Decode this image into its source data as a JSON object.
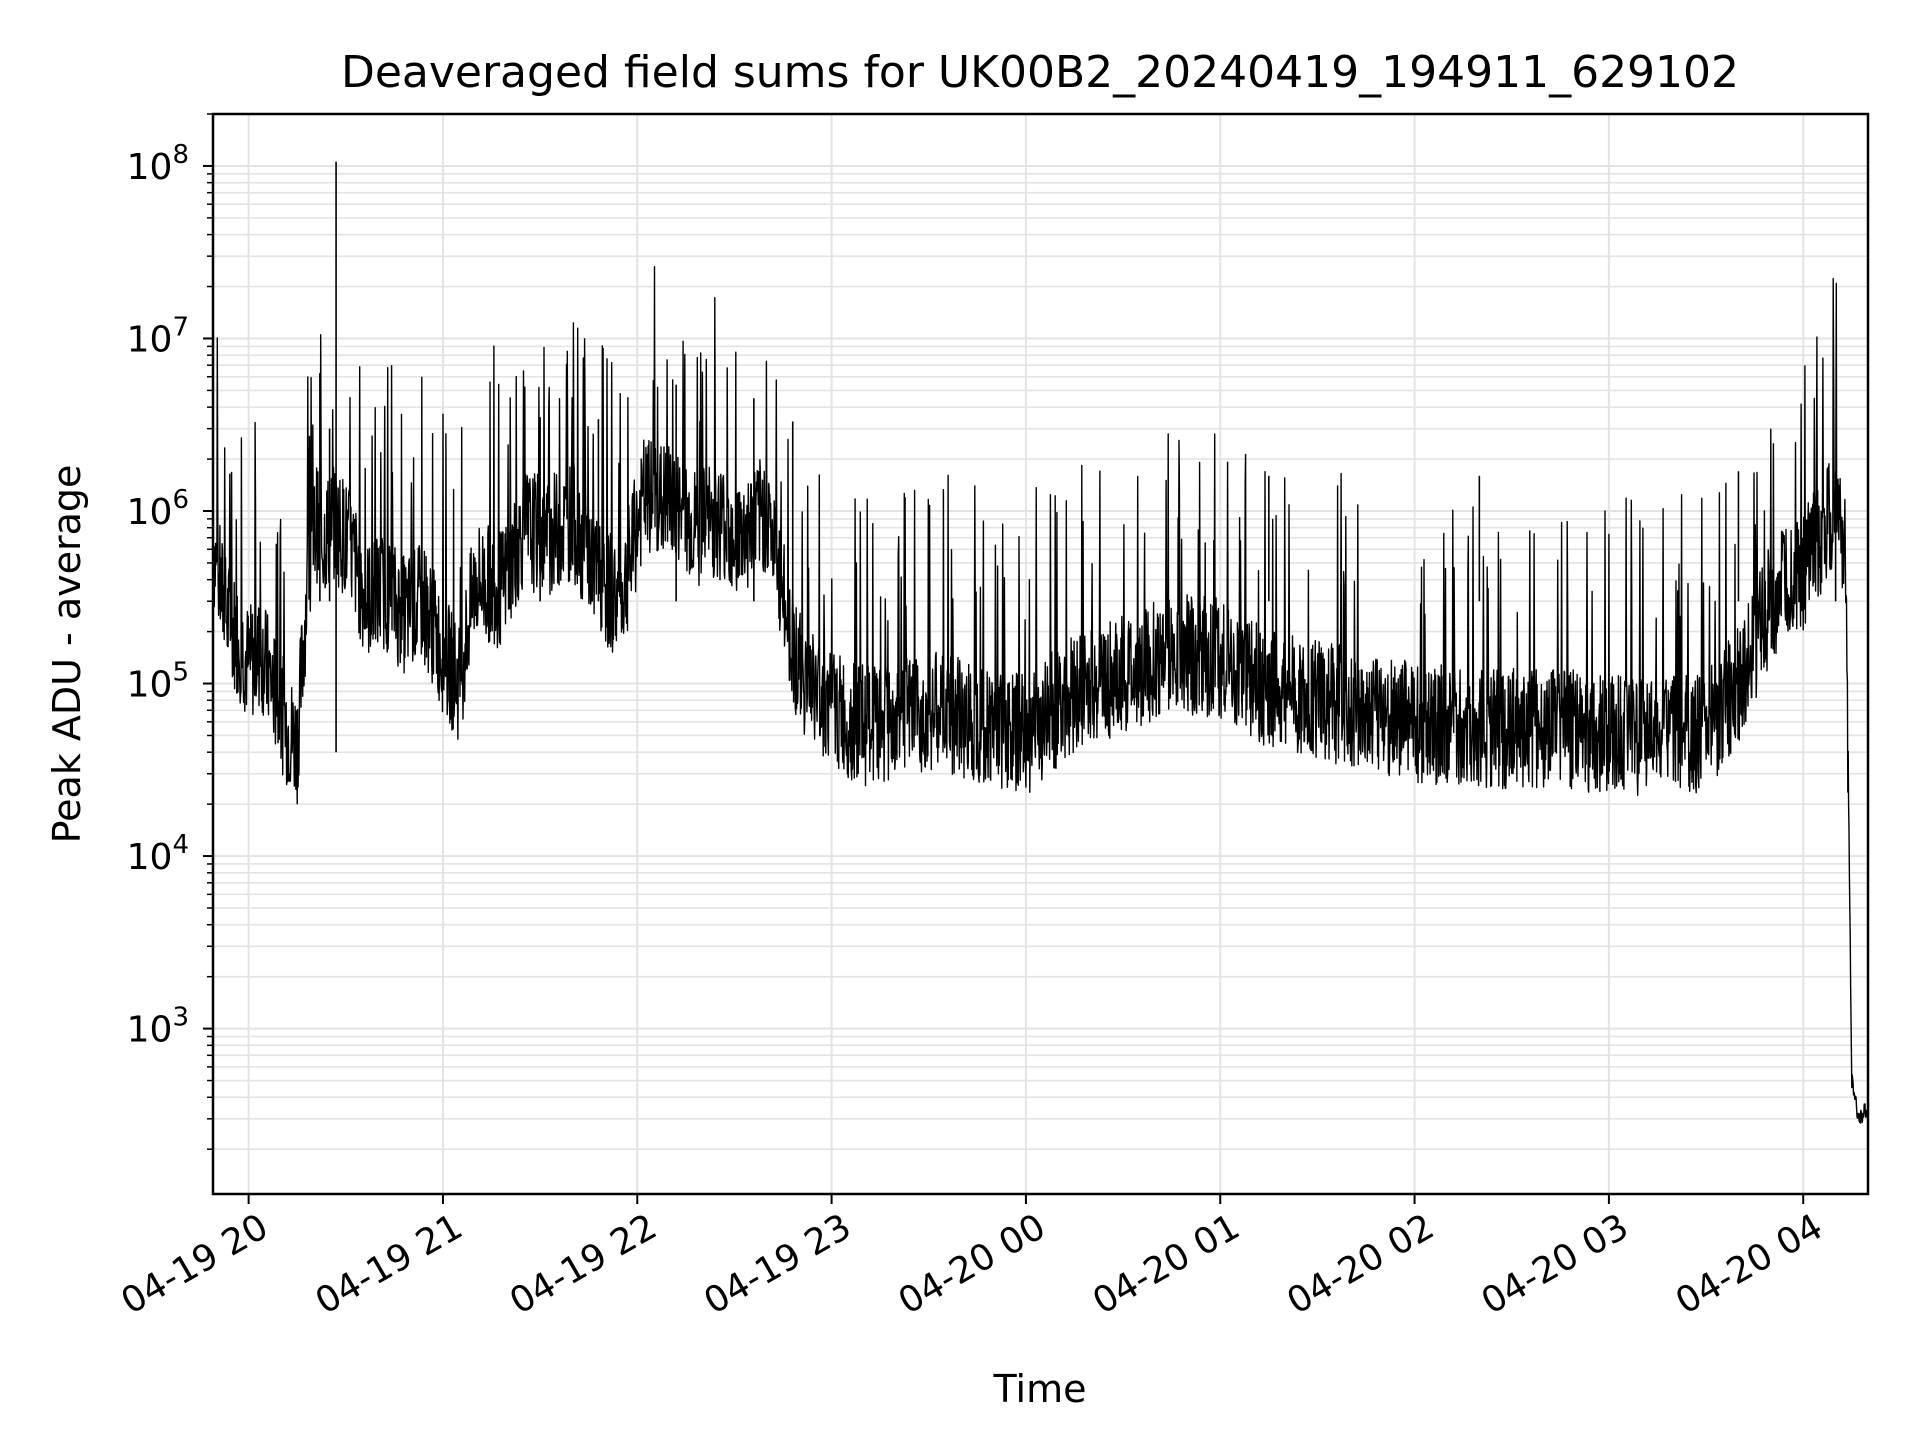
{
  "chart_data": {
    "type": "line",
    "title": "Deaveraged field sums for UK00B2_20240419_194911_629102",
    "xlabel": "Time",
    "ylabel": "Peak ADU - average",
    "yscale": "log",
    "grid": true,
    "xlim": [
      "2024-04-19 19:49",
      "2024-04-20 04:20"
    ],
    "ylim": [
      110,
      200000000
    ],
    "x_ticks": [
      "04-19 20",
      "04-19 21",
      "04-19 22",
      "04-19 23",
      "04-20 00",
      "04-20 01",
      "04-20 02",
      "04-20 03",
      "04-20 04"
    ],
    "y_ticks": [
      {
        "base": "10",
        "exp": "3",
        "value": 1000
      },
      {
        "base": "10",
        "exp": "4",
        "value": 10000
      },
      {
        "base": "10",
        "exp": "5",
        "value": 100000
      },
      {
        "base": "10",
        "exp": "6",
        "value": 1000000
      },
      {
        "base": "10",
        "exp": "7",
        "value": 10000000
      },
      {
        "base": "10",
        "exp": "8",
        "value": 100000000
      }
    ],
    "line_color": "#000000",
    "series": [
      {
        "x": [
          "2024-04-19 19:49",
          "2024-04-19 19:53",
          "2024-04-19 19:57",
          "2024-04-19 20:00",
          "2024-04-19 20:04",
          "2024-04-19 20:08",
          "2024-04-19 20:12",
          "2024-04-19 20:15",
          "2024-04-19 20:18",
          "2024-04-19 20:21",
          "2024-04-19 20:22",
          "2024-04-19 20:24",
          "2024-04-19 20:27",
          "2024-04-19 20:30",
          "2024-04-19 20:33",
          "2024-04-19 20:36",
          "2024-04-19 20:42",
          "2024-04-19 20:48",
          "2024-04-19 20:54",
          "2024-04-19 21:00",
          "2024-04-19 21:05",
          "2024-04-19 21:10",
          "2024-04-19 21:18",
          "2024-04-19 21:25",
          "2024-04-19 21:32",
          "2024-04-19 21:40",
          "2024-04-19 21:48",
          "2024-04-19 21:55",
          "2024-04-19 22:02",
          "2024-04-19 22:10",
          "2024-04-19 22:18",
          "2024-04-19 22:25",
          "2024-04-19 22:32",
          "2024-04-19 22:40",
          "2024-04-19 22:46",
          "2024-04-19 22:50",
          "2024-04-19 22:55",
          "2024-04-19 23:05",
          "2024-04-19 23:15",
          "2024-04-19 23:30",
          "2024-04-19 23:45",
          "2024-04-20 00:00",
          "2024-04-20 00:15",
          "2024-04-20 00:30",
          "2024-04-20 00:45",
          "2024-04-20 01:00",
          "2024-04-20 01:15",
          "2024-04-20 01:30",
          "2024-04-20 01:45",
          "2024-04-20 02:00",
          "2024-04-20 02:15",
          "2024-04-20 02:30",
          "2024-04-20 02:45",
          "2024-04-20 03:00",
          "2024-04-20 03:15",
          "2024-04-20 03:30",
          "2024-04-20 03:40",
          "2024-04-20 03:50",
          "2024-04-20 04:00",
          "2024-04-20 04:05",
          "2024-04-20 04:09",
          "2024-04-20 04:11",
          "2024-04-20 04:13",
          "2024-04-20 04:14",
          "2024-04-20 04:15",
          "2024-04-20 04:17",
          "2024-04-20 04:20"
        ],
        "y": [
          600000,
          250000,
          180000,
          130000,
          150000,
          90000,
          55000,
          45000,
          350000,
          900000,
          600000,
          750000,
          850000,
          700000,
          500000,
          300000,
          350000,
          250000,
          300000,
          150000,
          100000,
          400000,
          350000,
          800000,
          700000,
          900000,
          400000,
          300000,
          1200000,
          1100000,
          800000,
          900000,
          700000,
          1000000,
          250000,
          120000,
          90000,
          60000,
          55000,
          70000,
          60000,
          50000,
          90000,
          110000,
          150000,
          140000,
          90000,
          80000,
          70000,
          60000,
          55000,
          55000,
          55000,
          50000,
          50000,
          52000,
          100000,
          300000,
          450000,
          700000,
          900000,
          1100000,
          600000,
          20000,
          500,
          300,
          350
        ]
      }
    ],
    "spikes": [
      {
        "x": "2024-04-19 20:22",
        "y": 6300000
      },
      {
        "x": "2024-04-19 20:25",
        "y": 3000000
      },
      {
        "x": "2024-04-19 20:27",
        "y": 106000000
      },
      {
        "x": "2024-04-19 21:30",
        "y": 3500000
      },
      {
        "x": "2024-04-19 21:48",
        "y": 3400000
      },
      {
        "x": "2024-04-19 22:12",
        "y": 5400000
      },
      {
        "x": "2024-04-19 22:36",
        "y": 4500000
      },
      {
        "x": "2024-04-19 22:48",
        "y": 3300000
      },
      {
        "x": "2024-04-20 01:15",
        "y": 1600000
      },
      {
        "x": "2024-04-20 02:20",
        "y": 1600000
      },
      {
        "x": "2024-04-20 03:40",
        "y": 1700000
      },
      {
        "x": "2024-04-20 04:10",
        "y": 1700000
      }
    ]
  }
}
